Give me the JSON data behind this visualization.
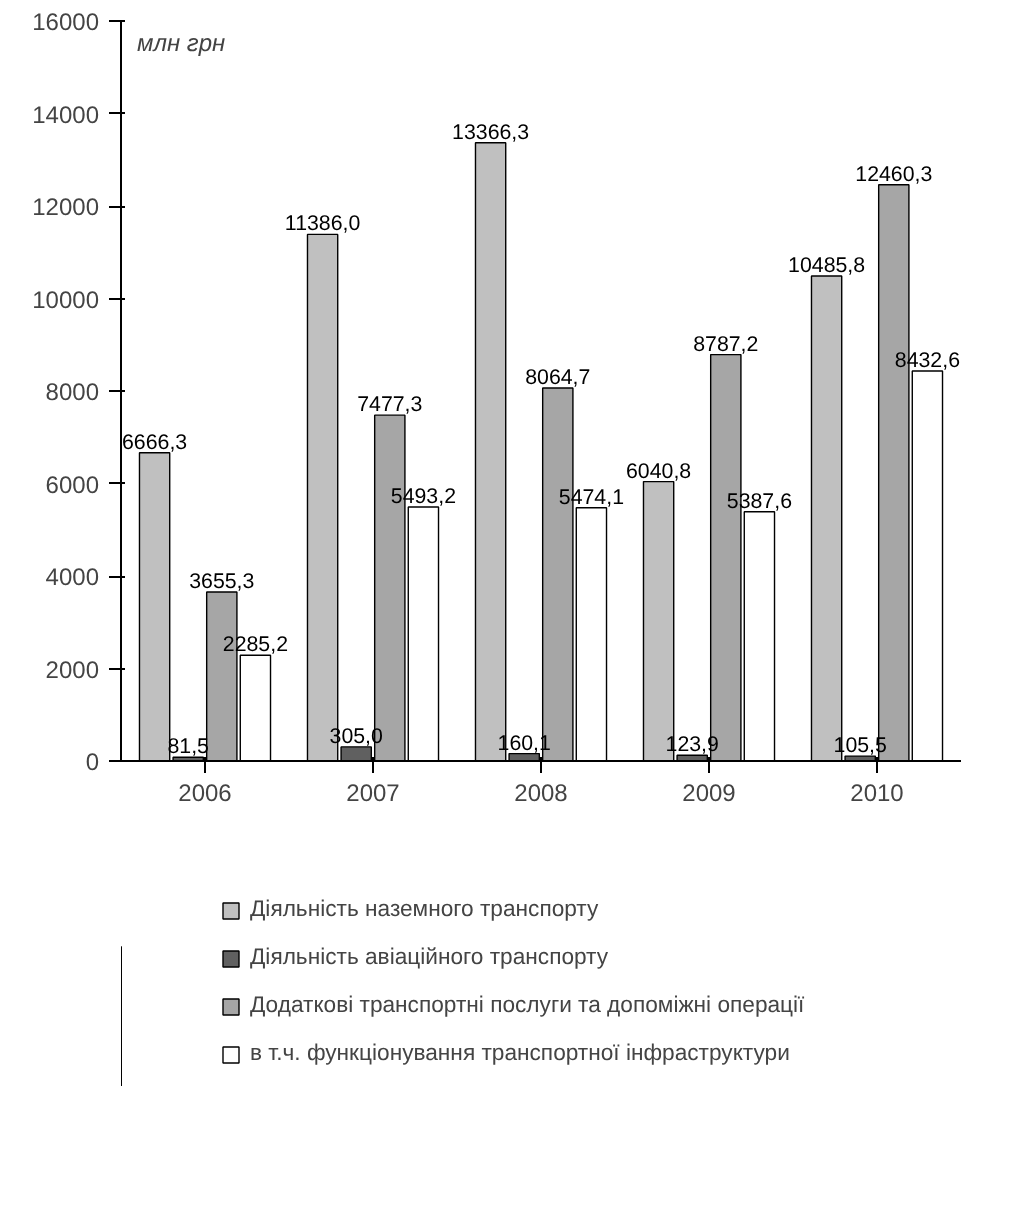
{
  "chart_data": {
    "type": "bar",
    "ylabel": "млн грн",
    "categories": [
      "2006",
      "2007",
      "2008",
      "2009",
      "2010"
    ],
    "ylim": [
      0,
      16000
    ],
    "yticks": [
      0,
      2000,
      4000,
      6000,
      8000,
      10000,
      12000,
      14000,
      16000
    ],
    "grid": false,
    "legend": "bottom",
    "series": [
      {
        "name": "Діяльність наземного транспорту",
        "color": "#c0c0c0",
        "values": [
          6666.3,
          11386.0,
          13366.3,
          6040.8,
          10485.8
        ],
        "value_labels": [
          "6666,3",
          "11386,0",
          "13366,3",
          "6040,8",
          "10485,8"
        ]
      },
      {
        "name": "Діяльність авіаційного транспорту",
        "color": "#606060",
        "values": [
          81.5,
          305.0,
          160.1,
          123.9,
          105.5
        ],
        "value_labels": [
          "81,5",
          "305,0",
          "160,1",
          "123,9",
          "105,5"
        ]
      },
      {
        "name": "Додаткові транспортні послуги та допоміжні операції",
        "color": "#a6a6a6",
        "values": [
          3655.3,
          7477.3,
          8064.7,
          8787.2,
          12460.3
        ],
        "value_labels": [
          "3655,3",
          "7477,3",
          "8064,7",
          "8787,2",
          "12460,3"
        ]
      },
      {
        "name": "в т.ч. функціонування транспортної інфраструктури",
        "color": "#ffffff",
        "values": [
          2285.2,
          5493.2,
          5474.1,
          5387.6,
          8432.6
        ],
        "value_labels": [
          "2285,2",
          "5493,2",
          "5474,1",
          "5387,6",
          "8432,6"
        ]
      }
    ]
  }
}
